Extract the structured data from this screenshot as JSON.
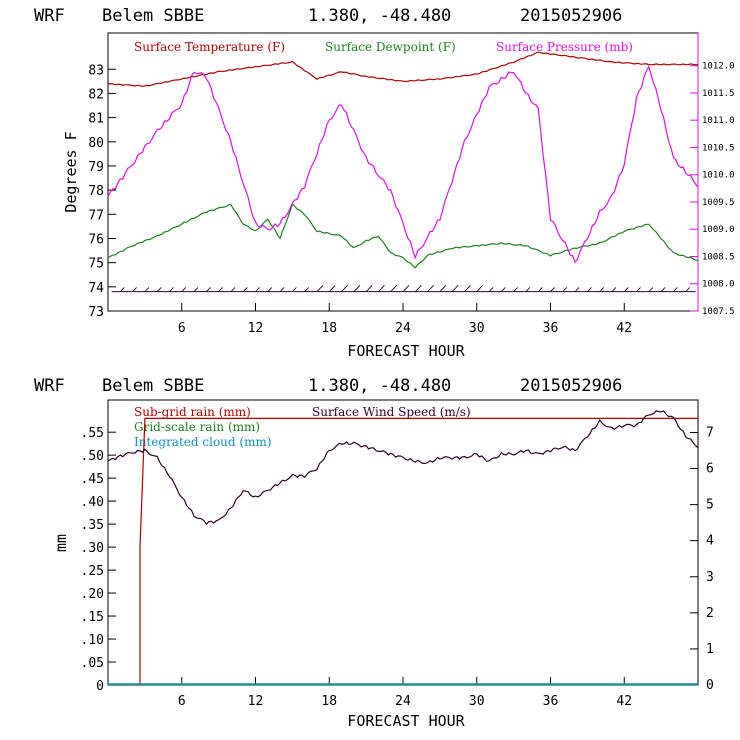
{
  "colors": {
    "temperature": "#b00000",
    "dewpoint": "#208020",
    "pressure": "#e010e0",
    "wind_barbs": "#300030",
    "subgrid": "#b00000",
    "gridscale": "#208020",
    "cloud": "#1090c0",
    "windspeed": "#300030"
  },
  "chart_data": [
    {
      "type": "line",
      "header": {
        "model": "WRF",
        "station": "Belem SBBE",
        "coords": "1.380, -48.480",
        "date": "2015052906"
      },
      "title": "",
      "xlabel": "FORECAST HOUR",
      "ylabel": "Degrees F",
      "xlim": [
        0,
        48
      ],
      "ylim": [
        73,
        84.5
      ],
      "y2lim": [
        1007.5,
        1012.6
      ],
      "x_ticks": [
        "6",
        "12",
        "18",
        "24",
        "30",
        "36",
        "42"
      ],
      "x_tick_values": [
        6,
        12,
        18,
        24,
        30,
        36,
        42
      ],
      "y_ticks": [
        "73",
        "74",
        "75",
        "76",
        "77",
        "78",
        "79",
        "80",
        "81",
        "82",
        "83"
      ],
      "y2_ticks": [
        "1007.5",
        "1008.0",
        "1008.5",
        "1009.0",
        "1009.5",
        "1010.0",
        "1010.5",
        "1011.0",
        "1011.5",
        "1012.0"
      ],
      "series": [
        {
          "name": "Surface Temperature (F)",
          "axis": "left",
          "x": [
            0,
            3,
            6,
            9,
            12,
            15,
            17,
            19,
            21,
            24,
            27,
            30,
            33,
            35,
            38,
            41,
            44,
            48
          ],
          "y": [
            82.4,
            82.3,
            82.6,
            82.9,
            83.1,
            83.3,
            82.6,
            82.9,
            82.7,
            82.5,
            82.6,
            82.8,
            83.3,
            83.7,
            83.5,
            83.3,
            83.2,
            83.2
          ]
        },
        {
          "name": "Surface Dewpoint (F)",
          "axis": "left",
          "x": [
            0,
            2,
            4,
            6,
            8,
            10,
            11,
            12,
            13,
            14,
            15,
            16,
            17,
            18,
            19,
            20,
            21,
            22,
            23,
            24,
            25,
            26,
            28,
            30,
            32,
            34,
            36,
            38,
            40,
            42,
            44,
            46,
            48
          ],
          "y": [
            75.2,
            75.7,
            76.1,
            76.6,
            77.1,
            77.4,
            76.6,
            76.3,
            76.8,
            76.0,
            77.4,
            77.0,
            76.3,
            76.2,
            76.1,
            75.6,
            75.9,
            76.1,
            75.4,
            75.2,
            74.8,
            75.3,
            75.6,
            75.7,
            75.8,
            75.7,
            75.3,
            75.6,
            75.8,
            76.3,
            76.6,
            75.4,
            75.1
          ]
        },
        {
          "name": "Surface Pressure (mb)",
          "axis": "right",
          "x": [
            0,
            2,
            4,
            6,
            7,
            8,
            10,
            12,
            13,
            14,
            16,
            18,
            19,
            21,
            23,
            25,
            27,
            29,
            31,
            33,
            34,
            35,
            36,
            37,
            38,
            40,
            41,
            42,
            43,
            44,
            45,
            46,
            48
          ],
          "y": [
            1009.6,
            1010.2,
            1010.8,
            1011.3,
            1011.9,
            1011.8,
            1010.6,
            1009.1,
            1009.0,
            1009.1,
            1009.8,
            1011.0,
            1011.3,
            1010.3,
            1009.7,
            1008.5,
            1009.2,
            1010.6,
            1011.6,
            1011.9,
            1011.5,
            1011.2,
            1009.2,
            1008.8,
            1008.4,
            1009.3,
            1009.6,
            1010.2,
            1011.4,
            1012.0,
            1011.2,
            1010.3,
            1009.8
          ]
        }
      ],
      "wind_barb_level": 73.8,
      "legend": [
        "Surface Temperature (F)",
        "Surface Dewpoint (F)",
        "Surface Pressure (mb)"
      ],
      "legend_placement": "top-left"
    },
    {
      "type": "line",
      "header": {
        "model": "WRF",
        "station": "Belem SBBE",
        "coords": "1.380, -48.480",
        "date": "2015052906"
      },
      "title": "",
      "xlabel": "FORECAST HOUR",
      "ylabel": "mm",
      "xlim": [
        0,
        48
      ],
      "ylim": [
        0,
        0.62
      ],
      "y2lim": [
        0,
        7.9
      ],
      "x_ticks": [
        "6",
        "12",
        "18",
        "24",
        "30",
        "36",
        "42"
      ],
      "x_tick_values": [
        6,
        12,
        18,
        24,
        30,
        36,
        42
      ],
      "y_ticks": [
        "0",
        ".05",
        ".10",
        ".15",
        ".20",
        ".25",
        ".30",
        ".35",
        ".40",
        ".45",
        ".50",
        ".55"
      ],
      "y2_ticks": [
        "0",
        "1",
        "2",
        "3",
        "4",
        "5",
        "6",
        "7"
      ],
      "series": [
        {
          "name": "Sub-grid rain (mm)",
          "axis": "left",
          "x": [
            0,
            2.6,
            2.6,
            3.0,
            48
          ],
          "y": [
            0,
            0,
            0.3,
            0.58,
            0.58
          ]
        },
        {
          "name": "Grid-scale rain (mm)",
          "axis": "left",
          "x": [
            0,
            48
          ],
          "y": [
            0,
            0
          ]
        },
        {
          "name": "Integrated cloud (mm)",
          "axis": "left",
          "x": [
            0,
            48
          ],
          "y": [
            0.002,
            0.002
          ]
        },
        {
          "name": "Surface Wind Speed (m/s)",
          "axis": "right",
          "x": [
            0,
            1,
            2,
            3,
            4,
            5,
            6,
            7,
            8,
            9,
            10,
            11,
            12,
            13,
            14,
            15,
            16,
            17,
            18,
            19,
            20,
            21,
            22,
            23,
            24,
            25,
            26,
            27,
            28,
            29,
            30,
            31,
            32,
            33,
            34,
            35,
            36,
            37,
            38,
            39,
            40,
            41,
            42,
            43,
            44,
            45,
            46,
            47,
            48
          ],
          "y": [
            6.2,
            6.35,
            6.45,
            6.5,
            6.3,
            5.8,
            5.2,
            4.7,
            4.5,
            4.55,
            4.9,
            5.4,
            5.2,
            5.4,
            5.6,
            5.8,
            5.8,
            6.0,
            6.5,
            6.7,
            6.7,
            6.6,
            6.5,
            6.4,
            6.3,
            6.2,
            6.15,
            6.3,
            6.3,
            6.3,
            6.4,
            6.2,
            6.4,
            6.4,
            6.5,
            6.4,
            6.5,
            6.6,
            6.5,
            6.9,
            7.3,
            7.1,
            7.2,
            7.2,
            7.5,
            7.6,
            7.4,
            6.9,
            6.6
          ]
        }
      ],
      "legend": [
        "Sub-grid rain (mm)",
        "Surface Wind Speed (m/s)",
        "Grid-scale rain (mm)",
        "Integrated cloud (mm)"
      ],
      "legend_placement": "top-left"
    }
  ]
}
